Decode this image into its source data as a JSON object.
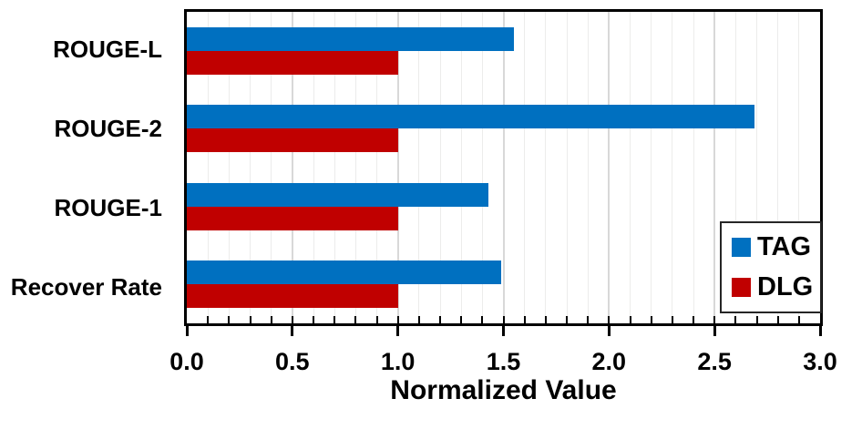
{
  "chart_data": {
    "type": "bar",
    "orientation": "horizontal",
    "title": "",
    "categories": [
      "ROUGE-L",
      "ROUGE-2",
      "ROUGE-1",
      "Recover Rate"
    ],
    "series": [
      {
        "name": "TAG",
        "color": "#0070C0",
        "values": [
          1.55,
          2.69,
          1.43,
          1.49
        ]
      },
      {
        "name": "DLG",
        "color": "#C00000",
        "values": [
          1.0,
          1.0,
          1.0,
          1.0
        ]
      }
    ],
    "xlabel": "Normalized Value",
    "ylabel": "",
    "xlim": [
      0.0,
      3.0
    ],
    "x_major_ticks": [
      0.0,
      0.5,
      1.0,
      1.5,
      2.0,
      2.5,
      3.0
    ],
    "x_tick_labels": [
      "0.0",
      "0.5",
      "1.0",
      "1.5",
      "2.0",
      "2.5",
      "3.0"
    ],
    "x_minor_tick_interval": 0.1,
    "grid": "vertical gridlines: minor every 0.1 (light), major every 0.5 (darker)",
    "legend_position": "lower right",
    "bar_order_note": "blue TAG bar above red DLG bar in each category group"
  },
  "legend": {
    "items": [
      {
        "label": "TAG",
        "color": "#0070C0"
      },
      {
        "label": "DLG",
        "color": "#C00000"
      }
    ]
  },
  "colors": {
    "tag_blue": "#0070C0",
    "dlg_red": "#C00000",
    "axis_and_text": "#000000",
    "minor_gridline": "#ECECEB",
    "major_gridline": "#D8D8D8",
    "plot_border": "#000000",
    "background": "#FFFFFF"
  }
}
